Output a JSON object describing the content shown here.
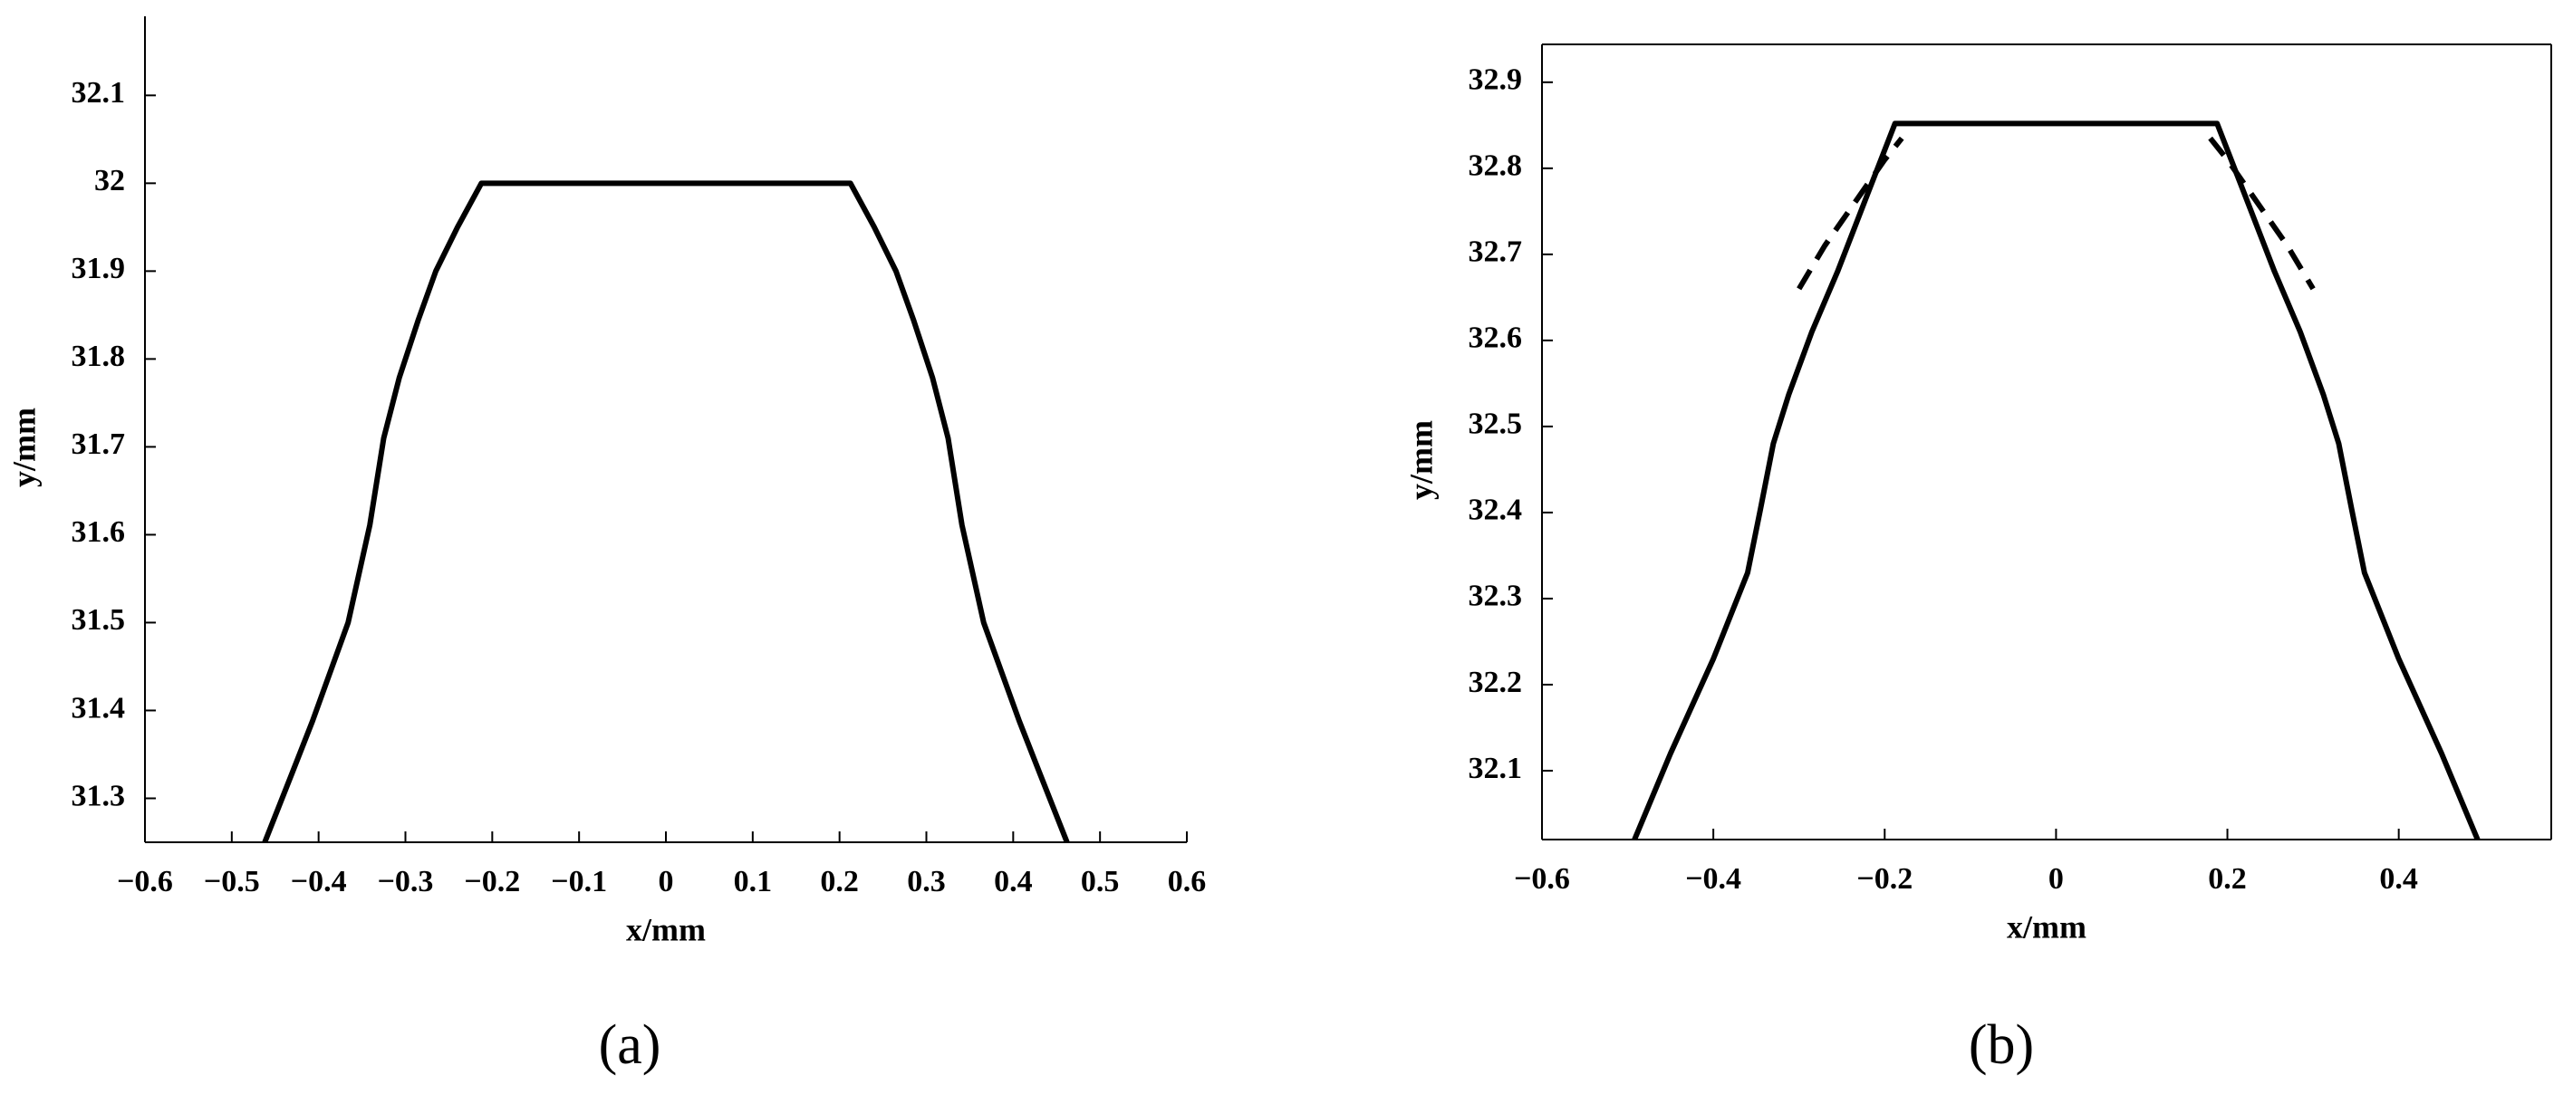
{
  "chart_data": [
    {
      "type": "line",
      "panel_label": "(a)",
      "x_label": "x/mm",
      "y_label": "y/mm",
      "box": false,
      "xlim": [
        -0.6,
        0.6
      ],
      "ylim": [
        31.25,
        32.19
      ],
      "xticks": [
        {
          "value": -0.6,
          "label": "−0.6"
        },
        {
          "value": -0.5,
          "label": "−0.5"
        },
        {
          "value": -0.4,
          "label": "−0.4"
        },
        {
          "value": -0.3,
          "label": "−0.3"
        },
        {
          "value": -0.2,
          "label": "−0.2"
        },
        {
          "value": -0.1,
          "label": "−0.1"
        },
        0,
        0.1,
        0.2,
        0.3,
        0.4,
        0.5,
        0.6
      ],
      "yticks": [
        31.3,
        31.4,
        31.5,
        31.6,
        31.7,
        31.8,
        31.9,
        32,
        32.1
      ],
      "series": [
        {
          "color": "#000000",
          "dash": false,
          "x": [
            -0.462,
            -0.43,
            -0.407,
            -0.366,
            -0.341,
            -0.325,
            -0.307,
            -0.285,
            -0.265,
            -0.24,
            -0.2125,
            0.2125,
            0.24,
            0.265,
            0.285,
            0.307,
            0.325,
            0.341,
            0.366,
            0.407,
            0.43,
            0.462
          ],
          "values": [
            31.25,
            31.33,
            31.388,
            31.5,
            31.611,
            31.71,
            31.779,
            31.845,
            31.9,
            31.95,
            32.0,
            32.0,
            31.95,
            31.9,
            31.845,
            31.779,
            31.71,
            31.611,
            31.5,
            31.388,
            31.33,
            31.25
          ]
        }
      ]
    },
    {
      "type": "line",
      "panel_label": "(b)",
      "x_label": "x/mm",
      "y_label": "y/mm",
      "box": true,
      "xlim": [
        -0.6,
        0.578
      ],
      "ylim": [
        32.02,
        32.944
      ],
      "xticks": [
        {
          "value": -0.6,
          "label": "−0.6"
        },
        {
          "value": -0.4,
          "label": "−0.4"
        },
        {
          "value": -0.2,
          "label": "−0.2"
        },
        0,
        0.2,
        0.4
      ],
      "yticks": [
        32.1,
        32.2,
        32.3,
        32.4,
        32.5,
        32.6,
        32.7,
        32.8,
        32.9
      ],
      "series": [
        {
          "color": "#000000",
          "dash": false,
          "x": [
            -0.492,
            -0.45,
            -0.4,
            -0.36,
            -0.345,
            -0.33,
            -0.312,
            -0.285,
            -0.255,
            -0.22,
            -0.188,
            0.188,
            0.22,
            0.255,
            0.285,
            0.312,
            0.33,
            0.345,
            0.36,
            0.4,
            0.45,
            0.492
          ],
          "values": [
            32.02,
            32.12,
            32.23,
            32.33,
            32.404,
            32.48,
            32.537,
            32.61,
            32.68,
            32.77,
            32.852,
            32.852,
            32.77,
            32.68,
            32.61,
            32.537,
            32.48,
            32.404,
            32.33,
            32.23,
            32.12,
            32.02
          ]
        },
        {
          "color": "#000000",
          "dash": true,
          "x": [
            -0.3,
            -0.27,
            -0.235,
            -0.2,
            -0.18,
            0,
            0.18,
            0.2,
            0.235,
            0.27,
            0.3
          ],
          "values": [
            32.66,
            32.71,
            32.76,
            32.81,
            32.835,
            null,
            32.835,
            32.81,
            32.76,
            32.71,
            32.66
          ]
        }
      ]
    }
  ]
}
